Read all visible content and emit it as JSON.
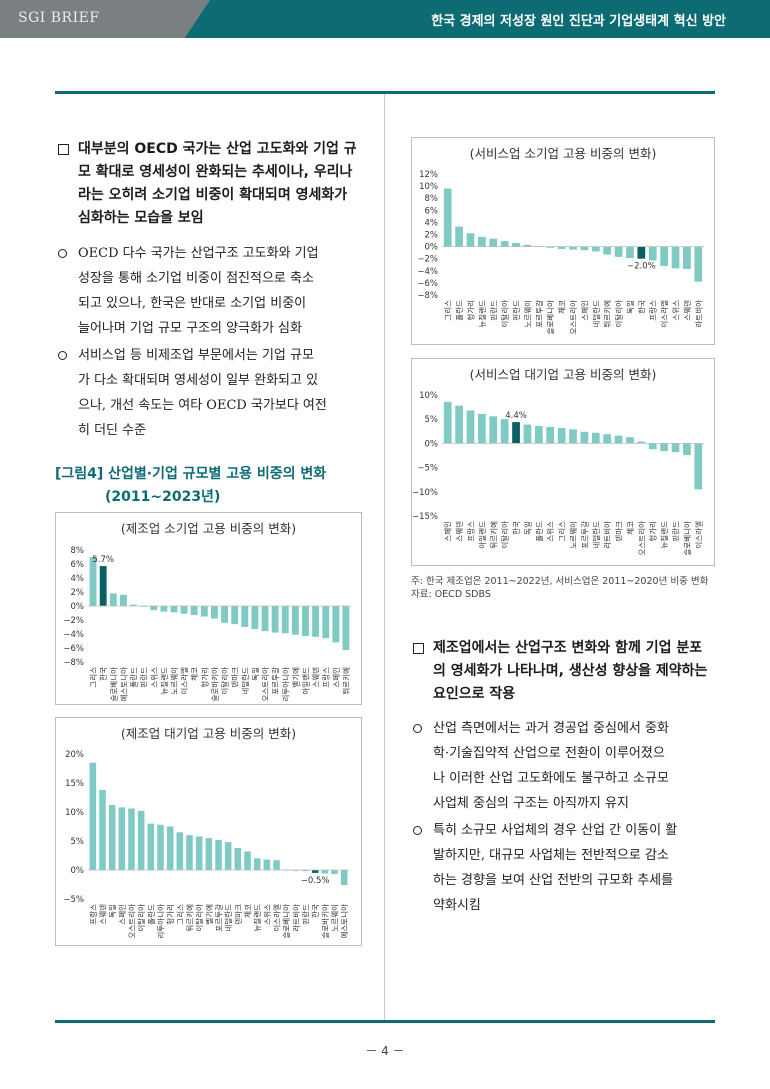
{
  "header": {
    "brand": "SGI BRIEF",
    "title": "한국 경제의 저성장 원인 진단과 기업생태계 혁신 방안"
  },
  "left": {
    "q1": [
      "대부분의 OECD 국가는 산업 고도화와 기업 규",
      "모 확대로 영세성이 완화되는 추세이나, 우리나",
      "라는 오히려 소기업 비중이 확대되며 영세화가",
      "심화하는 모습을 보임"
    ],
    "b1": [
      "OECD 다수 국가는 산업구조 고도화와 기업",
      "성장을 통해 소기업 비중이 점진적으로 축소",
      "되고 있으나, 한국은 반대로 소기업 비중이",
      "늘어나며 기업 규모 구조의 양극화가 심화"
    ],
    "b2": [
      "서비스업 등 비제조업 부문에서는 기업 규모",
      "가 다소 확대되며 영세성이 일부 완화되고 있",
      "으나, 개선 속도는 여타 OECD 국가보다 여전",
      "히 더딘 수준"
    ],
    "figure_title": "[그림4] 산업별·기업 규모별 고용 비중의 변화",
    "figure_sub": "(2011~2023년)"
  },
  "right": {
    "note": "주: 한국 제조업은 2011~2022년, 서비스업은 2011~2020년 비중 변화",
    "source": "자료: OECD SDBS",
    "q2": [
      "제조업에서는 산업구조 변화와 함께 기업 분포",
      "의 영세화가 나타나며, 생산성 향상을 제약하는",
      "요인으로 작용"
    ],
    "b3": [
      "산업 측면에서는 과거 경공업 중심에서 중화",
      "학·기술집약적 산업으로 전환이 이루어졌으",
      "나 이러한 산업 고도화에도 불구하고 소규모",
      "사업체 중심의 구조는 아직까지 유지"
    ],
    "b4": [
      "특히 소규모 사업체의 경우 산업 간 이동이 활",
      "발하지만, 대규모 사업체는 전반적으로 감소",
      "하는 경향을 보여 산업 전반의 규모화 추세를",
      "약화시킴"
    ]
  },
  "page_number": "－ 4 －",
  "colors": {
    "teal": "#0d6b74",
    "bar": "#7fcbc4",
    "highlight": "#0d5f66"
  },
  "chart_data": [
    {
      "type": "bar",
      "title": "(제조업 소기업 고용 비중의 변화)",
      "ylim": [
        -8,
        8
      ],
      "yticks": [
        "8%",
        "6%",
        "4%",
        "2%",
        "0%",
        "−2%",
        "−4%",
        "−6%",
        "−8%"
      ],
      "highlight_label": "5.7%",
      "categories": [
        "그리스",
        "한국",
        "슬로베니아",
        "에스토니아",
        "폴란드",
        "핀란드",
        "스위스",
        "뉴질랜드",
        "노르웨이",
        "이스라엘",
        "체코",
        "헝가리",
        "슬로바키아",
        "이탈리아",
        "덴마크",
        "네덜란드",
        "독일",
        "오스트리아",
        "포르투갈",
        "리투아니아",
        "벨기에",
        "아일랜드",
        "스웨덴",
        "프랑스",
        "스페인",
        "튀르키예"
      ],
      "values": [
        7.0,
        5.7,
        1.8,
        1.6,
        0.2,
        -0.1,
        -0.6,
        -0.8,
        -0.9,
        -1.1,
        -1.3,
        -1.5,
        -1.8,
        -2.4,
        -2.6,
        -3.0,
        -3.3,
        -3.6,
        -3.8,
        -3.9,
        -4.1,
        -4.3,
        -4.4,
        -4.6,
        -5.2,
        -6.3
      ],
      "highlight_index": 1
    },
    {
      "type": "bar",
      "title": "(제조업 대기업 고용 비중의 변화)",
      "ylim": [
        -5,
        20
      ],
      "yticks": [
        "20%",
        "15%",
        "10%",
        "5%",
        "0%",
        "−5%"
      ],
      "highlight_label": "−0.5%",
      "categories": [
        "프랑스",
        "스웨덴",
        "독일",
        "스페인",
        "오스트리아",
        "이탈리아",
        "폴란드",
        "리투아니아",
        "헝가리",
        "그리스",
        "튀르키예",
        "이탈리아",
        "벨기에",
        "포르투갈",
        "네덜란드",
        "덴마크",
        "체코",
        "뉴질랜드",
        "스위스",
        "이스라엘",
        "슬로베니아",
        "라트비아",
        "핀란드",
        "한국",
        "슬로바키아",
        "노르웨이",
        "에스토니아"
      ],
      "values": [
        18.5,
        13.8,
        11.2,
        10.8,
        10.6,
        10.2,
        8.0,
        7.8,
        7.5,
        6.5,
        6.0,
        5.8,
        5.5,
        5.2,
        4.8,
        3.8,
        3.2,
        2.0,
        1.8,
        1.7,
        0.1,
        -0.1,
        -0.2,
        -0.5,
        -0.6,
        -0.7,
        -2.6
      ],
      "highlight_index": 23
    },
    {
      "type": "bar",
      "title": "(서비스업 소기업 고용 비중의 변화)",
      "ylim": [
        -8,
        12
      ],
      "yticks": [
        "12%",
        "10%",
        "8%",
        "6%",
        "4%",
        "2%",
        "0%",
        "−2%",
        "−4%",
        "−6%",
        "−8%"
      ],
      "highlight_label": "−2.0%",
      "categories": [
        "그리스",
        "폴란드",
        "헝가리",
        "뉴질랜드",
        "핀란드",
        "이탈리아",
        "핀란드",
        "노르웨이",
        "포르투갈",
        "슬로베니아",
        "체코",
        "오스트리아",
        "스페인",
        "네덜란드",
        "튀르키예",
        "이탈리아",
        "독일",
        "한국",
        "프랑스",
        "이스라엘",
        "스위스",
        "스웨덴",
        "라트비아"
      ],
      "values": [
        9.6,
        3.3,
        2.2,
        1.6,
        1.3,
        0.9,
        0.6,
        0.3,
        0.1,
        -0.2,
        -0.4,
        -0.5,
        -0.6,
        -0.8,
        -1.3,
        -1.7,
        -1.9,
        -2.0,
        -2.3,
        -3.2,
        -3.6,
        -3.7,
        -5.8
      ],
      "highlight_index": 17
    },
    {
      "type": "bar",
      "title": "(서비스업 대기업 고용 비중의 변화)",
      "ylim": [
        -15,
        10
      ],
      "yticks": [
        "10%",
        "5%",
        "0%",
        "−5%",
        "−10%",
        "−15%"
      ],
      "highlight_label": "4.4%",
      "categories": [
        "스페인",
        "스웨덴",
        "프랑스",
        "아일랜드",
        "튀르키예",
        "이탈리아",
        "한국",
        "독일",
        "폴란드",
        "스위스",
        "그리스",
        "노르웨이",
        "포르투갈",
        "네덜란드",
        "라트비아",
        "덴마크",
        "체코",
        "오스트리아",
        "헝가리",
        "뉴질랜드",
        "핀란드",
        "슬로베니아",
        "이스라엘"
      ],
      "values": [
        8.6,
        7.8,
        6.8,
        6.1,
        5.6,
        5.0,
        4.4,
        3.9,
        3.6,
        3.4,
        3.2,
        2.9,
        2.4,
        2.2,
        1.9,
        1.6,
        1.3,
        0.4,
        -1.2,
        -1.6,
        -1.8,
        -2.4,
        -9.5
      ],
      "highlight_index": 6
    }
  ]
}
